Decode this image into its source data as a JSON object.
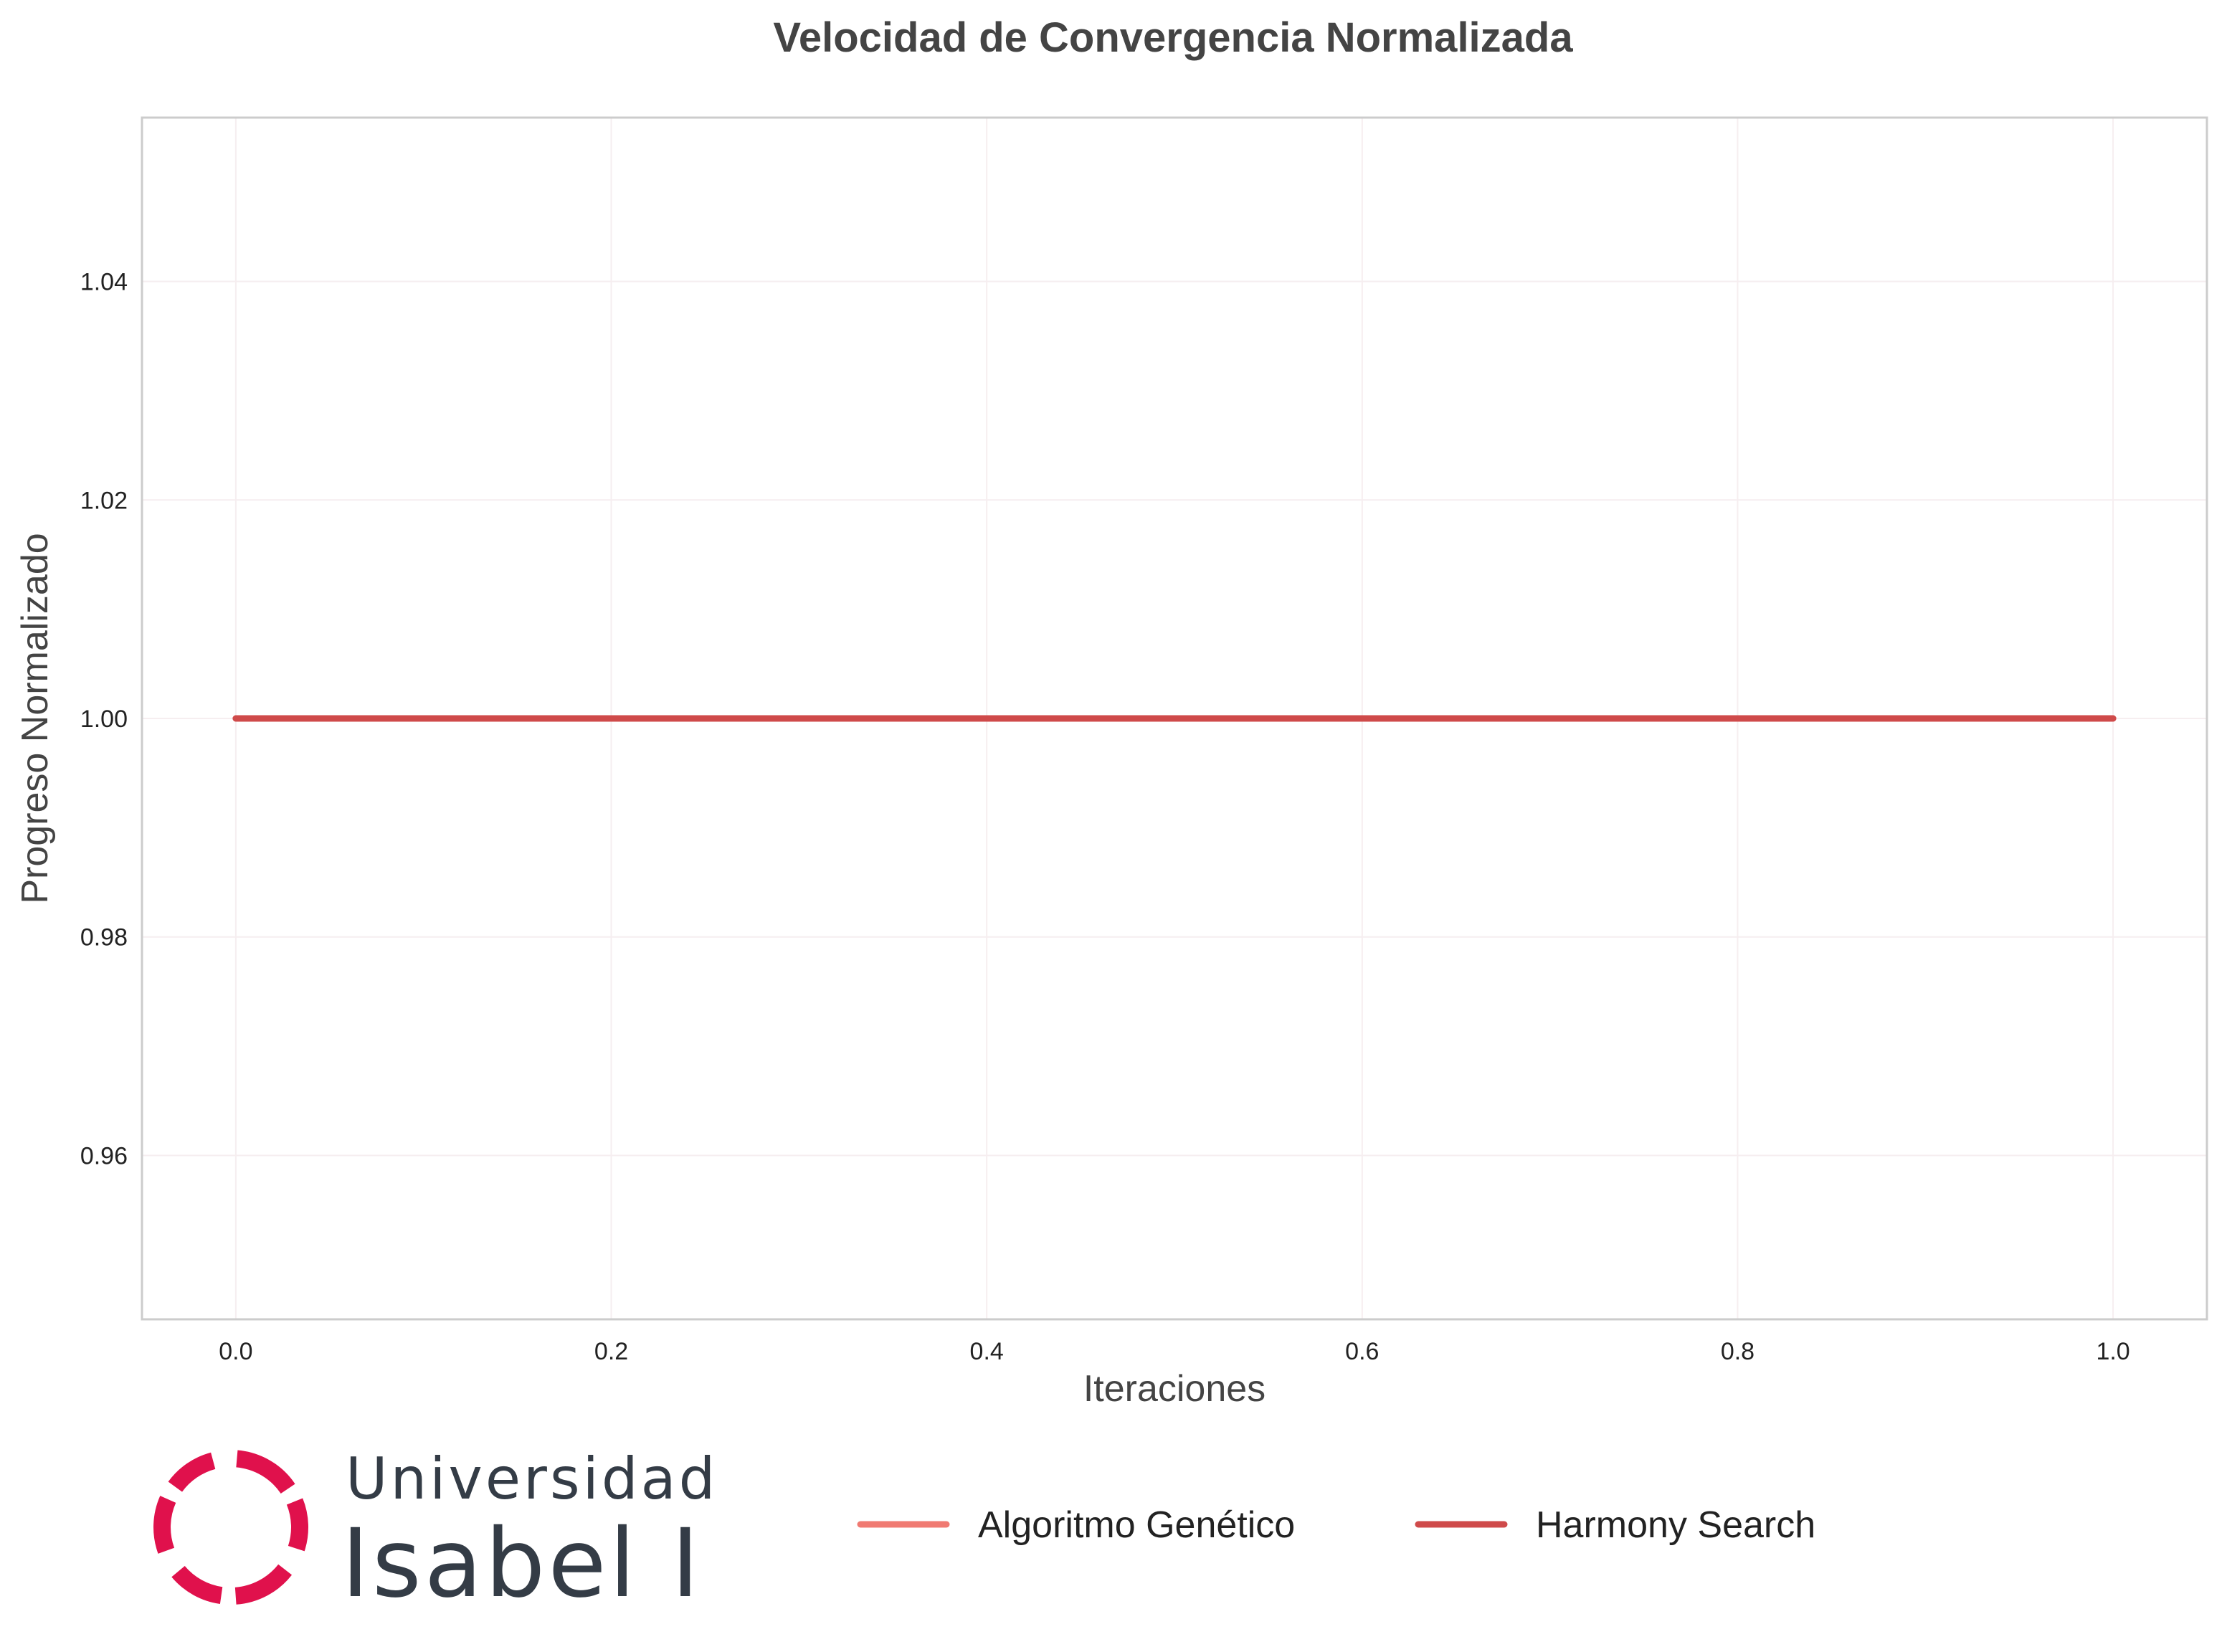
{
  "colors": {
    "series_1": "#f07a72",
    "series_2": "#cf4a4a",
    "grid": "#f6eef0",
    "frame": "#cccccc",
    "logo_mark": "#e0114c",
    "logo_text": "#343c46"
  },
  "logo": {
    "line1": "Universidad",
    "line2": "Isabel I",
    "icon": "universidad-isabel-i-logo-mark"
  },
  "chart_data": {
    "type": "line",
    "title": "Velocidad de Convergencia Normalizada",
    "xlabel": "Iteraciones",
    "ylabel": "Progreso Normalizado",
    "xlim": [
      -0.05,
      1.05
    ],
    "ylim": [
      0.945,
      1.055
    ],
    "xticks": [
      0.0,
      0.2,
      0.4,
      0.6,
      0.8,
      1.0
    ],
    "xtick_labels": [
      "0.0",
      "0.2",
      "0.4",
      "0.6",
      "0.8",
      "1.0"
    ],
    "yticks": [
      0.96,
      0.98,
      1.0,
      1.02,
      1.04
    ],
    "ytick_labels": [
      "0.96",
      "0.98",
      "1.00",
      "1.02",
      "1.04"
    ],
    "grid": true,
    "legend_position": "bottom-right, below the axes",
    "series": [
      {
        "name": "Algoritmo Genético",
        "x": [
          0.0,
          1.0
        ],
        "y": [
          1.0,
          1.0
        ]
      },
      {
        "name": "Harmony Search",
        "x": [
          0.0,
          1.0
        ],
        "y": [
          1.0,
          1.0
        ]
      }
    ]
  }
}
